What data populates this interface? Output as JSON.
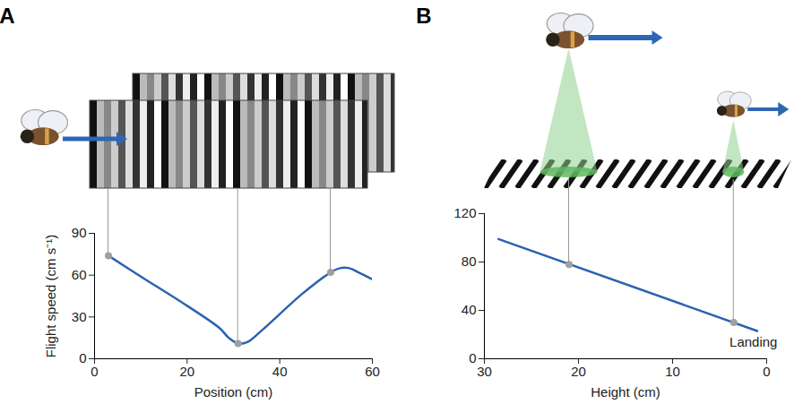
{
  "chart_data": [
    {
      "type": "line",
      "panel": "A",
      "color": "#2c62b0",
      "x": [
        3,
        10,
        20,
        27,
        29,
        31,
        33,
        36,
        45,
        51,
        53,
        55,
        57,
        60
      ],
      "values": [
        74,
        59,
        38,
        22,
        15,
        11,
        12,
        20,
        47,
        62,
        65,
        65,
        62,
        57
      ],
      "xlabel": "Position (cm)",
      "ylabel": "Flight speed (cm s⁻¹)",
      "xlim": [
        0,
        60
      ],
      "xticks": [
        0,
        20,
        40,
        60
      ],
      "ylim": [
        0,
        90
      ],
      "yticks": [
        0,
        30,
        60,
        90
      ],
      "highlights": {
        "x": [
          3,
          31,
          51
        ],
        "y": [
          74,
          11,
          62
        ]
      }
    },
    {
      "type": "line",
      "panel": "B",
      "color": "#2c62b0",
      "x": [
        28.5,
        1
      ],
      "values": [
        99,
        23
      ],
      "xlabel": "Height (cm)",
      "xlim": [
        30,
        0
      ],
      "xticks": [
        30,
        20,
        10,
        0
      ],
      "ylim": [
        0,
        120
      ],
      "yticks": [
        0,
        40,
        80,
        120
      ],
      "highlights": {
        "x": [
          21,
          3.5
        ],
        "y": [
          78,
          30
        ]
      },
      "annotations": [
        {
          "text": "Landing",
          "x": 3.5,
          "y": 30
        }
      ]
    }
  ]
}
